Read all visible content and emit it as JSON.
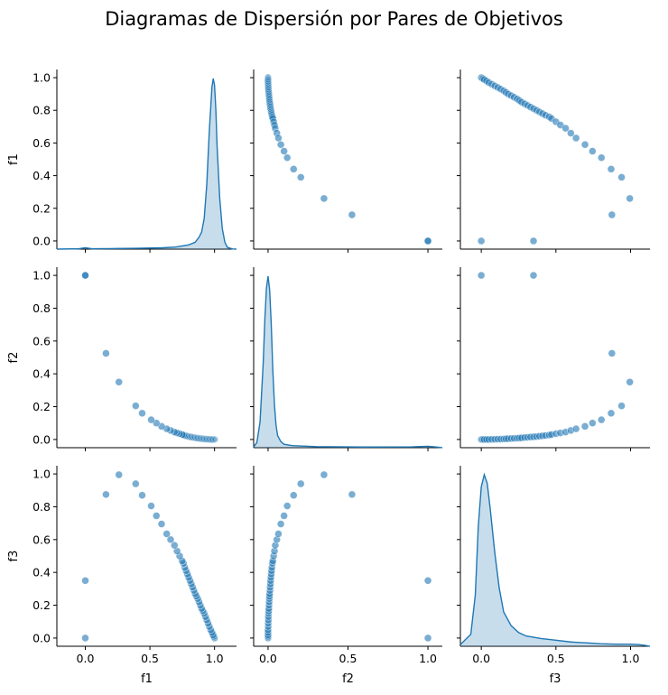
{
  "chart_data": {
    "type": "scatter",
    "title": "Diagramas de Dispersión por Pares de Objetivos",
    "variables": [
      "f1",
      "f2",
      "f3"
    ],
    "diagonal": "kde",
    "grid": false,
    "color": "#1f77b4",
    "xlim": {
      "f1": [
        -0.22,
        1.17
      ],
      "f2": [
        -0.09,
        1.09
      ],
      "f3": [
        -0.14,
        1.13
      ]
    },
    "ylim": [
      -0.05,
      1.05
    ],
    "ticks": {
      "f1": [
        0.0,
        0.5,
        1.0
      ],
      "f2": [
        0.0,
        0.5,
        1.0
      ],
      "f3": [
        0.0,
        0.5,
        1.0
      ],
      "y": [
        0.0,
        0.2,
        0.4,
        0.6,
        0.8,
        1.0
      ]
    },
    "tick_labels": {
      "f1": [
        "0.0",
        "0.5",
        "1.0"
      ],
      "f2": [
        "0.0",
        "0.5",
        "1.0"
      ],
      "f3": [
        "0.0",
        "0.5",
        "1.0"
      ],
      "y": [
        "0.0",
        "0.2",
        "0.4",
        "0.6",
        "0.8",
        "1.0"
      ]
    },
    "points": {
      "f1": [
        1.0,
        0.994,
        0.988,
        0.98,
        0.97,
        0.96,
        0.95,
        0.94,
        0.93,
        0.92,
        0.91,
        0.9,
        0.89,
        0.88,
        0.87,
        0.86,
        0.85,
        0.84,
        0.83,
        0.82,
        0.81,
        0.8,
        0.79,
        0.78,
        0.77,
        0.76,
        0.75,
        0.73,
        0.71,
        0.69,
        0.66,
        0.63,
        0.59,
        0.55,
        0.51,
        0.44,
        0.39,
        0.26,
        0.16,
        0.0,
        0.0
      ],
      "f2": [
        0.0,
        0.0,
        0.0,
        0.0,
        0.0,
        0.001,
        0.001,
        0.002,
        0.002,
        0.003,
        0.004,
        0.005,
        0.006,
        0.007,
        0.008,
        0.009,
        0.01,
        0.012,
        0.013,
        0.015,
        0.016,
        0.018,
        0.02,
        0.022,
        0.024,
        0.027,
        0.03,
        0.035,
        0.04,
        0.045,
        0.055,
        0.065,
        0.08,
        0.1,
        0.12,
        0.16,
        0.205,
        0.35,
        0.525,
        1.0,
        1.0
      ],
      "f3": [
        0.0,
        0.01,
        0.02,
        0.035,
        0.05,
        0.07,
        0.09,
        0.11,
        0.13,
        0.15,
        0.165,
        0.18,
        0.2,
        0.22,
        0.24,
        0.255,
        0.27,
        0.29,
        0.31,
        0.33,
        0.35,
        0.37,
        0.39,
        0.41,
        0.43,
        0.455,
        0.47,
        0.5,
        0.53,
        0.565,
        0.6,
        0.635,
        0.695,
        0.745,
        0.805,
        0.87,
        0.94,
        0.995,
        0.875,
        0.35,
        0.0
      ]
    },
    "kde": {
      "f1": {
        "x": [
          -0.22,
          -0.05,
          0.0,
          0.05,
          0.2,
          0.4,
          0.6,
          0.7,
          0.8,
          0.85,
          0.88,
          0.9,
          0.92,
          0.94,
          0.96,
          0.98,
          0.99,
          1.0,
          1.01,
          1.02,
          1.04,
          1.06,
          1.08,
          1.1,
          1.14,
          1.17
        ],
        "density": [
          0.0,
          0.002,
          0.008,
          0.002,
          0.003,
          0.005,
          0.008,
          0.012,
          0.025,
          0.04,
          0.07,
          0.1,
          0.18,
          0.38,
          0.7,
          0.95,
          1.0,
          0.96,
          0.82,
          0.6,
          0.3,
          0.12,
          0.04,
          0.01,
          0.001,
          0.0
        ]
      },
      "f2": {
        "x": [
          -0.09,
          -0.07,
          -0.05,
          -0.03,
          -0.02,
          -0.01,
          0.0,
          0.01,
          0.02,
          0.03,
          0.04,
          0.05,
          0.06,
          0.08,
          0.1,
          0.15,
          0.3,
          0.6,
          0.9,
          1.0,
          1.05,
          1.09
        ],
        "density": [
          0.005,
          0.03,
          0.15,
          0.5,
          0.75,
          0.93,
          1.0,
          0.92,
          0.72,
          0.45,
          0.25,
          0.13,
          0.07,
          0.035,
          0.02,
          0.012,
          0.006,
          0.004,
          0.005,
          0.008,
          0.004,
          0.0
        ]
      },
      "f3": {
        "x": [
          -0.14,
          -0.07,
          -0.04,
          -0.02,
          0.0,
          0.02,
          0.04,
          0.06,
          0.09,
          0.12,
          0.15,
          0.2,
          0.25,
          0.3,
          0.4,
          0.5,
          0.6,
          0.7,
          0.8,
          0.9,
          1.0,
          1.05,
          1.1,
          1.13
        ],
        "density": [
          0.01,
          0.07,
          0.3,
          0.7,
          0.93,
          1.0,
          0.95,
          0.8,
          0.55,
          0.34,
          0.2,
          0.12,
          0.08,
          0.06,
          0.045,
          0.035,
          0.025,
          0.02,
          0.015,
          0.012,
          0.012,
          0.01,
          0.005,
          0.0
        ]
      }
    }
  }
}
